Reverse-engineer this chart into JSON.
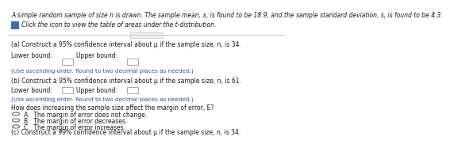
{
  "bg_color": "#ffffff",
  "header_line1": "A simple random sample of size n is drawn. The sample mean, x, is found to be 18.9, and the sample standard deviation, s, is found to be 4.3.",
  "icon_text": "Click the icon to view the table of areas under the t-distribution.",
  "section_a_title": "(a) Construct a 95% confidence interval about μ if the sample size, n, is 34.",
  "section_b_title": "(b) Construct a 95% confidence interval about μ if the sample size, n, is 61.",
  "lower_upper": "Lower bound:        Upper bound:",
  "note": "(Use ascending order. Round to two decimal places as needed.)",
  "margin_q": "How does increasing the sample size affect the margin of error, E?",
  "opt_a": "A.  The margin of error does not change.",
  "opt_b": "B.  The margin of error decreases.",
  "opt_c": "C.  The margin of error increases.",
  "section_c_title": "(c) Construct a 99% confidence interval about μ if the sample size, n, is 34.",
  "divider_color": "#cccccc",
  "text_color": "#1a1a1a",
  "note_color": "#2255aa",
  "icon_color": "#3a6fad",
  "box_edge_color": "#999999",
  "radio_color": "#555555",
  "font_size": 5.5,
  "note_font_size": 5.2
}
